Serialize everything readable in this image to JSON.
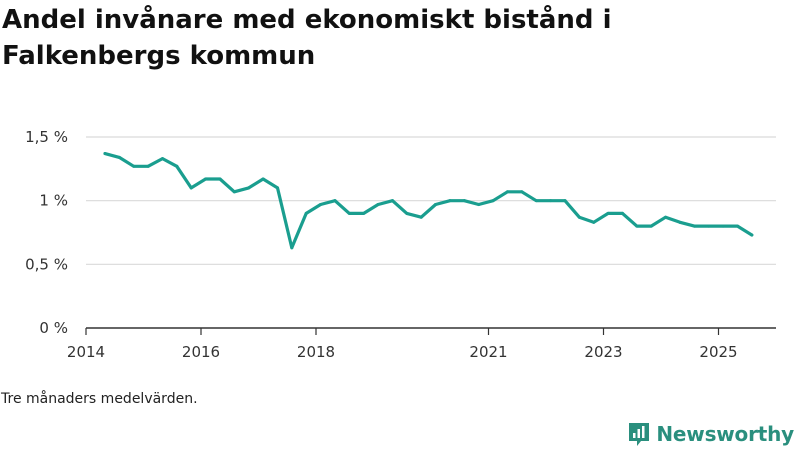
{
  "header": {
    "title": "Andel invånare med ekonomiskt bistånd i Falkenbergs kommun"
  },
  "footer": {
    "caption": "Tre månaders medelvärden.",
    "brand": "Newsworthy"
  },
  "colors": {
    "line": "#1a9e8f",
    "grid": "#d9d9d9",
    "axis": "#333333",
    "brand": "#2a8f7e"
  },
  "chart_data": {
    "type": "line",
    "title": "Andel invånare med ekonomiskt bistånd i Falkenbergs kommun",
    "xlabel": "",
    "ylabel": "",
    "ylim": [
      0,
      1.5
    ],
    "xlim": [
      2014.0,
      2026.0
    ],
    "grid": true,
    "y_ticks": [
      {
        "value": 0,
        "label": "0 %"
      },
      {
        "value": 0.5,
        "label": "0,5 %"
      },
      {
        "value": 1,
        "label": "1 %"
      },
      {
        "value": 1.5,
        "label": "1,5 %"
      }
    ],
    "x_ticks": [
      {
        "value": 2014.0,
        "label": "2014"
      },
      {
        "value": 2016.0,
        "label": "2016"
      },
      {
        "value": 2018.0,
        "label": "2018"
      },
      {
        "value": 2021.0,
        "label": "2021"
      },
      {
        "value": 2023.0,
        "label": "2023"
      },
      {
        "value": 2025.0,
        "label": "2025"
      }
    ],
    "series": [
      {
        "name": "Andel invånare med ekonomiskt bistånd",
        "x": [
          2014.33,
          2014.58,
          2014.83,
          2015.08,
          2015.33,
          2015.58,
          2015.83,
          2016.08,
          2016.33,
          2016.58,
          2016.83,
          2017.08,
          2017.33,
          2017.58,
          2017.83,
          2018.08,
          2018.33,
          2018.58,
          2018.83,
          2019.08,
          2019.33,
          2019.58,
          2019.83,
          2020.08,
          2020.33,
          2020.58,
          2020.83,
          2021.08,
          2021.33,
          2021.58,
          2021.83,
          2022.08,
          2022.33,
          2022.58,
          2022.83,
          2023.08,
          2023.33,
          2023.58,
          2023.83,
          2024.08,
          2024.33,
          2024.58,
          2024.83,
          2025.08,
          2025.33,
          2025.58
        ],
        "values": [
          1.37,
          1.34,
          1.27,
          1.27,
          1.33,
          1.27,
          1.1,
          1.17,
          1.17,
          1.07,
          1.1,
          1.17,
          1.1,
          0.63,
          0.9,
          0.97,
          1.0,
          0.9,
          0.9,
          0.97,
          1.0,
          0.9,
          0.87,
          0.97,
          1.0,
          1.0,
          0.97,
          1.0,
          1.07,
          1.07,
          1.0,
          1.0,
          1.0,
          0.87,
          0.83,
          0.9,
          0.9,
          0.8,
          0.8,
          0.87,
          0.83,
          0.8,
          0.8,
          0.8,
          0.8,
          0.73
        ]
      }
    ]
  }
}
